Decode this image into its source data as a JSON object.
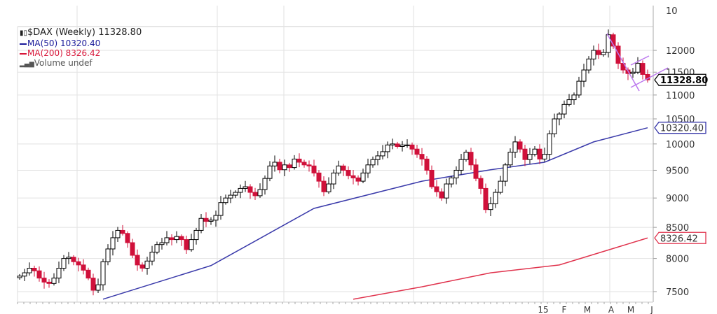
{
  "legend": {
    "main": "$DAX (Weekly) 11328.80",
    "ma50": "MA(50) 10320.40",
    "ma200": "MA(200) 8326.42",
    "volume": "Volume undef"
  },
  "colors": {
    "up": "#000000",
    "down": "#d0103a",
    "ma50": "#3a3aaa",
    "ma200": "#e0334d",
    "trend": "#bb77ee",
    "grid": "#e2e2e2"
  },
  "chart_data": {
    "type": "candlestick",
    "scale": "log",
    "ylim": [
      7380,
      13000
    ],
    "yticks": [
      7500,
      8000,
      8500,
      9000,
      9500,
      10000,
      10500,
      11000,
      11500,
      12000
    ],
    "top_tick_label": "10",
    "xtick_labels": [
      "15",
      "F",
      "M",
      "A",
      "M",
      "J"
    ],
    "closes": [
      7730,
      7780,
      7850,
      7810,
      7700,
      7640,
      7620,
      7700,
      7850,
      8000,
      8020,
      7950,
      7900,
      7820,
      7700,
      7520,
      7600,
      7950,
      8150,
      8330,
      8450,
      8400,
      8250,
      8050,
      7900,
      7850,
      7960,
      8100,
      8220,
      8250,
      8330,
      8300,
      8350,
      8300,
      8140,
      8300,
      8450,
      8650,
      8600,
      8620,
      8700,
      8920,
      9000,
      9050,
      9100,
      9170,
      9200,
      9100,
      9040,
      9150,
      9350,
      9580,
      9650,
      9510,
      9600,
      9550,
      9710,
      9650,
      9600,
      9580,
      9450,
      9300,
      9110,
      9250,
      9450,
      9580,
      9500,
      9400,
      9360,
      9300,
      9450,
      9600,
      9700,
      9770,
      9850,
      9980,
      10000,
      9950,
      9980,
      9980,
      9900,
      9800,
      9710,
      9500,
      9200,
      9110,
      9000,
      9250,
      9360,
      9500,
      9700,
      9840,
      9600,
      9350,
      9170,
      8800,
      8900,
      9100,
      9300,
      9600,
      9840,
      10040,
      9900,
      9700,
      9800,
      9900,
      9710,
      9800,
      10200,
      10500,
      10600,
      10800,
      10900,
      11000,
      11300,
      11550,
      11800,
      12000,
      11900,
      11950,
      12370,
      12100,
      11700,
      11550,
      11470,
      11500,
      11700,
      11450,
      11330
    ],
    "ma50": [
      [
        17,
        7390
      ],
      [
        39,
        7890
      ],
      [
        60,
        8820
      ],
      [
        82,
        9300
      ],
      [
        96,
        9510
      ],
      [
        107,
        9650
      ],
      [
        117,
        10040
      ],
      [
        128,
        10320.4
      ]
    ],
    "ma200": [
      [
        68,
        7390
      ],
      [
        82,
        7570
      ],
      [
        96,
        7780
      ],
      [
        110,
        7900
      ],
      [
        128,
        8326.42
      ]
    ],
    "last_labels": {
      "price": "11328.80",
      "ma50": "10320.40",
      "ma200": "8326.42"
    }
  }
}
